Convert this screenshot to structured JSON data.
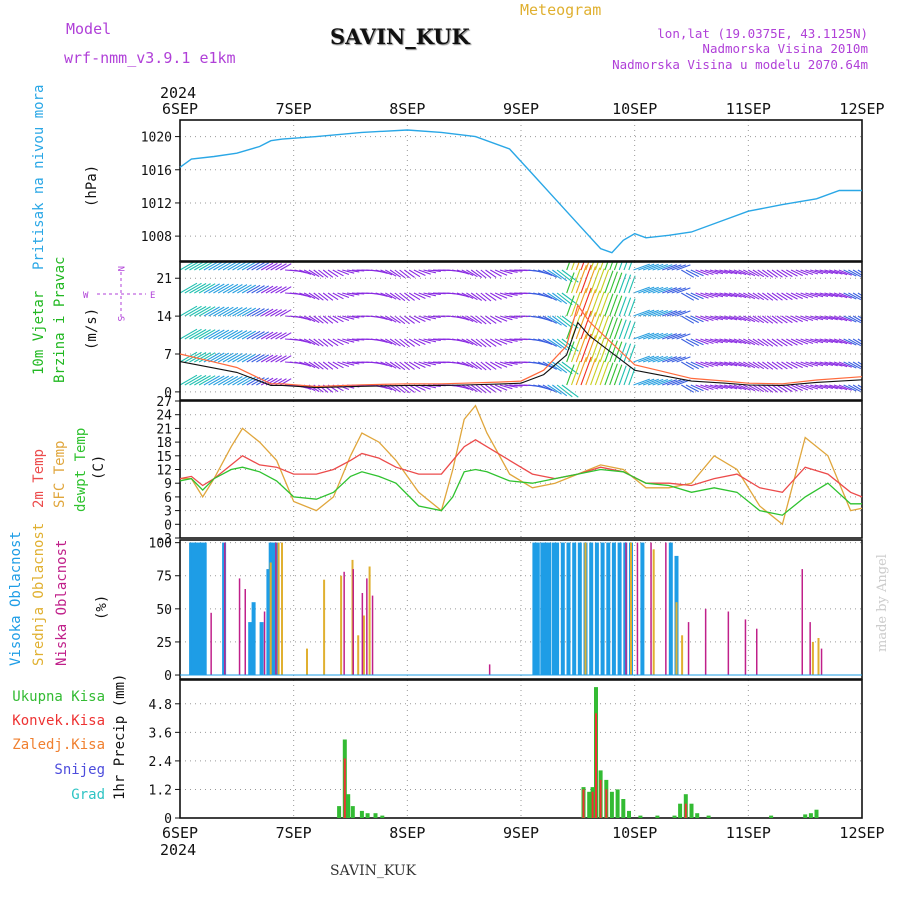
{
  "header": {
    "model_label": "Model",
    "model_name": "wrf-nmm_v3.9.1 e1km",
    "station": "SAVIN_KUK",
    "meteogram_label": "Meteogram",
    "lonlat": "lon,lat (19.0375E, 43.1125N)",
    "elevation": "Nadmorska Visina 2010m",
    "model_elevation": "Nadmorska Visina u modelu 2070.64m",
    "year": "2024",
    "footer_station": "SAVIN_KUK",
    "credit": "made by Angel"
  },
  "time_axis": {
    "labels": [
      "6SEP",
      "7SEP",
      "8SEP",
      "9SEP",
      "10SEP",
      "11SEP",
      "12SEP"
    ],
    "range_days": [
      0,
      6
    ]
  },
  "panels": {
    "pressure": {
      "label": "Pritisak na nivou mora",
      "unit": "(hPa)",
      "ticks": [
        "1008",
        "1012",
        "1016",
        "1020"
      ],
      "ylim": [
        1005,
        1022
      ]
    },
    "wind": {
      "label_a": "10m Vjetar",
      "label_b": "Brzina i Pravac",
      "unit": "(m/s)",
      "ticks": [
        "0",
        "7",
        "14",
        "21"
      ],
      "ylim": [
        -1.5,
        24
      ],
      "compass": {
        "n": "N",
        "s": "S",
        "w": "W",
        "e": "E"
      }
    },
    "temp": {
      "label_2m": "2m Temp",
      "label_sfc": "SFC Temp",
      "label_dew": "dewpt Temp",
      "unit": "(C)",
      "ticks": [
        "-3",
        "0",
        "3",
        "6",
        "9",
        "12",
        "15",
        "18",
        "21",
        "24",
        "27"
      ],
      "ylim": [
        -3,
        27
      ]
    },
    "cloud": {
      "label_high": "Visoka Oblacnost",
      "label_mid": "Srednja Oblacnost",
      "label_low": "Niska Oblacnost",
      "unit": "(%)",
      "ticks": [
        "0",
        "25",
        "50",
        "75",
        "100"
      ],
      "ylim": [
        -3,
        102
      ]
    },
    "precip": {
      "label_total": "Ukupna Kisa",
      "label_conv": "Konvek.Kisa",
      "label_frozen": "Zaledj.Kisa",
      "label_snow": "Snijeg",
      "label_hail": "Grad",
      "unit": "1hr Precip (mm)",
      "ticks": [
        "0",
        "1.2",
        "2.4",
        "3.6",
        "4.8"
      ],
      "ylim": [
        0,
        5.8
      ]
    }
  },
  "colors": {
    "pressure": "#2aa7e6",
    "temp2m": "#ec4b4b",
    "sfc": "#e0a63c",
    "dew": "#2fc22f",
    "high": "#1e9de6",
    "mid": "#e0b030",
    "low": "#c0208a",
    "total": "#33bb33",
    "conv": "#ee3333",
    "frozen": "#f08030",
    "snow": "#4d4ddd",
    "hail": "#2ec4c4",
    "purple": "#b040d8",
    "gust": "#ff6a3c"
  },
  "chart_data": {
    "type": "line",
    "x_unit": "days since 6SEP 00UTC",
    "pressure": {
      "x": [
        0,
        0.1,
        0.3,
        0.5,
        0.7,
        0.8,
        0.9,
        1.2,
        1.6,
        2.0,
        2.3,
        2.6,
        2.9,
        3.1,
        3.3,
        3.5,
        3.7,
        3.8,
        3.9,
        4.0,
        4.1,
        4.3,
        4.5,
        4.8,
        5.0,
        5.3,
        5.6,
        5.8,
        6.0
      ],
      "values": [
        1016.3,
        1017.3,
        1017.6,
        1018.0,
        1018.8,
        1019.5,
        1019.7,
        1020.0,
        1020.5,
        1020.8,
        1020.5,
        1020.0,
        1018.5,
        1015.5,
        1012.5,
        1009.5,
        1006.5,
        1006.0,
        1007.5,
        1008.3,
        1007.8,
        1008.1,
        1008.5,
        1010.0,
        1011.0,
        1011.8,
        1012.5,
        1013.5,
        1013.5
      ]
    },
    "wind_speed": {
      "x": [
        0,
        0.3,
        0.5,
        0.7,
        0.8,
        0.9,
        1.2,
        1.6,
        2.0,
        2.3,
        2.5,
        2.8,
        3.0,
        3.2,
        3.4,
        3.5,
        3.6,
        3.7,
        3.8,
        3.9,
        4.0,
        4.2,
        4.5,
        4.8,
        5.0,
        5.3,
        5.6,
        6.0
      ],
      "values": [
        7,
        5.5,
        4.5,
        2.5,
        1.5,
        1.5,
        1.0,
        1.3,
        1.5,
        1.5,
        1.6,
        1.8,
        2.0,
        4.0,
        8.5,
        16,
        13,
        11,
        9,
        7,
        5,
        4,
        2.5,
        2.0,
        1.6,
        1.5,
        2.2,
        2.8
      ]
    },
    "temp2m": {
      "x": [
        0,
        0.1,
        0.2,
        0.3,
        0.45,
        0.55,
        0.7,
        0.85,
        1.0,
        1.2,
        1.35,
        1.5,
        1.6,
        1.75,
        1.9,
        2.1,
        2.3,
        2.4,
        2.5,
        2.6,
        2.7,
        2.9,
        3.1,
        3.3,
        3.5,
        3.7,
        3.9,
        4.1,
        4.3,
        4.5,
        4.7,
        4.9,
        5.1,
        5.3,
        5.5,
        5.7,
        5.9,
        6.0
      ],
      "values": [
        10,
        10.5,
        8.5,
        10,
        13,
        15,
        13,
        12.5,
        11,
        11,
        12,
        14,
        15.5,
        14.5,
        12.5,
        11,
        11,
        14,
        17,
        18.5,
        17,
        14,
        11,
        10,
        11,
        12.5,
        11.5,
        9,
        9,
        8.5,
        10,
        11,
        8,
        7,
        12.5,
        11,
        7,
        6
      ]
    },
    "sfc_temp": {
      "x": [
        0,
        0.1,
        0.2,
        0.3,
        0.45,
        0.55,
        0.7,
        0.85,
        1.0,
        1.2,
        1.35,
        1.5,
        1.6,
        1.75,
        1.9,
        2.1,
        2.3,
        2.4,
        2.5,
        2.6,
        2.7,
        2.9,
        3.1,
        3.3,
        3.5,
        3.7,
        3.9,
        4.1,
        4.3,
        4.5,
        4.7,
        4.9,
        5.1,
        5.3,
        5.5,
        5.7,
        5.9,
        6.0
      ],
      "values": [
        10,
        10,
        6,
        10,
        17,
        21,
        18,
        14,
        5,
        3,
        6,
        15,
        20,
        18,
        14,
        7,
        3,
        12,
        23,
        26,
        20,
        11,
        8,
        9,
        11,
        13,
        12,
        8,
        8,
        9,
        15,
        12,
        4,
        0,
        19,
        15,
        3,
        3.5
      ]
    },
    "dew_temp": {
      "x": [
        0,
        0.1,
        0.2,
        0.3,
        0.45,
        0.55,
        0.7,
        0.85,
        1.0,
        1.2,
        1.35,
        1.5,
        1.6,
        1.75,
        1.9,
        2.1,
        2.3,
        2.4,
        2.5,
        2.6,
        2.7,
        2.9,
        3.1,
        3.3,
        3.5,
        3.7,
        3.9,
        4.1,
        4.3,
        4.5,
        4.7,
        4.9,
        5.1,
        5.3,
        5.5,
        5.7,
        5.9,
        6.0
      ],
      "values": [
        9.5,
        10,
        7.5,
        10,
        12,
        12.5,
        11.5,
        9.5,
        6,
        5.5,
        7,
        10.5,
        11.5,
        10.5,
        9,
        4,
        3,
        6,
        11.5,
        12,
        11.5,
        9.5,
        9,
        10,
        11,
        12,
        11.5,
        9,
        8.5,
        7,
        8,
        7,
        3,
        2,
        6,
        9,
        4.5,
        4.5
      ]
    },
    "cloud_high": {
      "x": [
        0.08,
        0.1,
        0.12,
        0.15,
        0.17,
        0.2,
        0.37,
        0.6,
        0.63,
        0.7,
        0.76,
        0.78,
        0.8,
        0.83,
        3.1,
        3.13,
        3.17,
        3.2,
        3.23,
        3.27,
        3.3,
        3.35,
        3.4,
        3.45,
        3.5,
        3.55,
        3.6,
        3.65,
        3.7,
        3.75,
        3.8,
        3.85,
        3.9,
        3.95,
        4.05,
        4.3,
        4.35
      ],
      "values": [
        100,
        100,
        100,
        100,
        100,
        100,
        100,
        40,
        55,
        40,
        80,
        100,
        100,
        100,
        100,
        100,
        100,
        100,
        100,
        100,
        100,
        100,
        100,
        100,
        100,
        100,
        100,
        100,
        100,
        100,
        100,
        100,
        100,
        100,
        100,
        100,
        90
      ]
    },
    "cloud_mid": {
      "x": [
        0.78,
        0.85,
        0.88,
        1.1,
        1.25,
        1.4,
        1.5,
        1.55,
        1.6,
        1.65,
        3.55,
        3.95,
        4.15,
        4.35,
        4.4,
        5.55,
        5.6
      ],
      "values": [
        85,
        100,
        100,
        20,
        72,
        75,
        87,
        30,
        45,
        82,
        100,
        100,
        95,
        55,
        30,
        25,
        28
      ]
    },
    "cloud_low": {
      "x": [
        0.25,
        0.37,
        0.5,
        0.55,
        0.72,
        0.82,
        1.42,
        1.5,
        1.58,
        1.62,
        1.67,
        2.7,
        3.9,
        4.0,
        4.12,
        4.25,
        4.45,
        4.6,
        4.8,
        4.95,
        5.05,
        5.45,
        5.52,
        5.62
      ],
      "values": [
        47,
        100,
        73,
        65,
        48,
        100,
        78,
        80,
        62,
        73,
        60,
        8,
        100,
        100,
        100,
        100,
        40,
        50,
        48,
        42,
        35,
        80,
        40,
        20
      ]
    },
    "precip_total": {
      "x": [
        1.4,
        1.45,
        1.48,
        1.52,
        1.6,
        1.65,
        1.72,
        1.78,
        3.55,
        3.6,
        3.63,
        3.66,
        3.7,
        3.75,
        3.8,
        3.85,
        3.9,
        3.95,
        4.05,
        4.2,
        4.35,
        4.4,
        4.45,
        4.5,
        4.55,
        4.65,
        5.2,
        5.5,
        5.55,
        5.6
      ],
      "values": [
        0.5,
        3.3,
        1.0,
        0.5,
        0.3,
        0.2,
        0.2,
        0.1,
        1.3,
        1.1,
        1.3,
        5.5,
        2.0,
        1.6,
        1.1,
        1.2,
        0.8,
        0.3,
        0.1,
        0.1,
        0.1,
        0.6,
        1.0,
        0.6,
        0.2,
        0.1,
        0.1,
        0.15,
        0.2,
        0.35
      ]
    },
    "precip_conv": {
      "x": [
        1.45,
        3.55,
        3.63,
        3.66,
        3.7,
        3.75,
        4.45
      ],
      "values": [
        2.5,
        1.2,
        1.1,
        4.4,
        1.6,
        1.2,
        0.6
      ]
    },
    "title": "SAVIN_KUK"
  }
}
